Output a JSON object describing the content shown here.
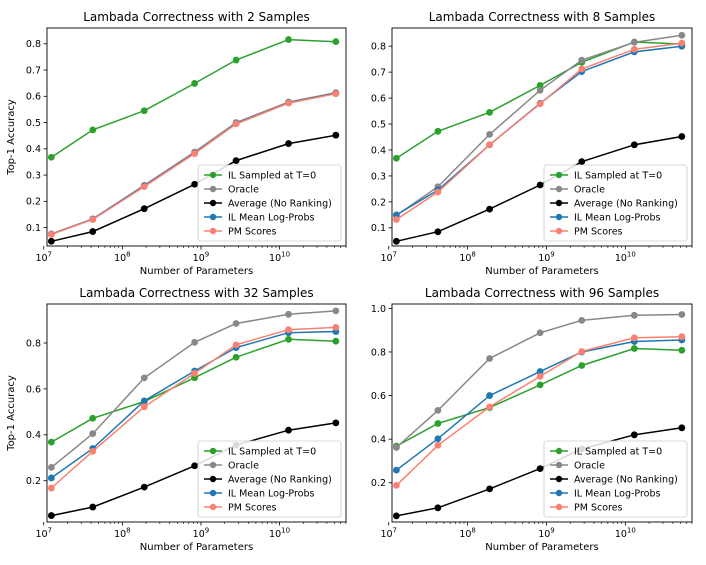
{
  "chart_data": [
    {
      "type": "line",
      "title": "Lambada Correctness with 2 Samples",
      "xlabel": "Number of Parameters",
      "ylabel": "Top-1 Accuracy",
      "xscale": "log",
      "xlim": [
        11000000.0,
        70000000000.0
      ],
      "ylim": [
        0.03,
        0.86
      ],
      "yticks": [
        "0.1",
        "0.2",
        "0.3",
        "0.4",
        "0.5",
        "0.6",
        "0.7",
        "0.8"
      ],
      "xticks": [
        "10^7",
        "10^8",
        "10^9",
        "10^10"
      ],
      "legend_placement": "lower-right",
      "x": [
        12500000.0,
        42000000.0,
        190000000.0,
        830000000.0,
        2800000000.0,
        13000000000.0,
        52000000000.0
      ],
      "series": [
        {
          "name": "IL Sampled at T=0",
          "color": "#2ca02c",
          "values": [
            0.368,
            0.472,
            0.545,
            0.649,
            0.738,
            0.816,
            0.808
          ]
        },
        {
          "name": "Oracle",
          "color": "#888888",
          "values": [
            0.076,
            0.133,
            0.261,
            0.388,
            0.5,
            0.578,
            0.614
          ]
        },
        {
          "name": "Average (No Ranking)",
          "color": "#000000",
          "values": [
            0.048,
            0.085,
            0.172,
            0.265,
            0.355,
            0.42,
            0.452
          ]
        },
        {
          "name": "IL Mean Log-Probs",
          "color": "#1f77b4",
          "values": [
            0.075,
            0.132,
            0.258,
            0.383,
            0.496,
            0.575,
            0.611
          ]
        },
        {
          "name": "PM Scores",
          "color": "#fa8072",
          "values": [
            0.074,
            0.131,
            0.256,
            0.382,
            0.495,
            0.574,
            0.61
          ]
        }
      ]
    },
    {
      "type": "line",
      "title": "Lambada Correctness with 8 Samples",
      "xlabel": "Number of Parameters",
      "ylabel": "",
      "xscale": "log",
      "xlim": [
        11000000.0,
        70000000000.0
      ],
      "ylim": [
        0.03,
        0.87
      ],
      "yticks": [
        "0.1",
        "0.2",
        "0.3",
        "0.4",
        "0.5",
        "0.6",
        "0.7",
        "0.8"
      ],
      "xticks": [
        "10^7",
        "10^8",
        "10^9",
        "10^10"
      ],
      "legend_placement": "lower-right",
      "x": [
        12500000.0,
        42000000.0,
        190000000.0,
        830000000.0,
        2800000000.0,
        13000000000.0,
        52000000000.0
      ],
      "series": [
        {
          "name": "IL Sampled at T=0",
          "color": "#2ca02c",
          "values": [
            0.368,
            0.472,
            0.545,
            0.649,
            0.738,
            0.816,
            0.808
          ]
        },
        {
          "name": "Oracle",
          "color": "#888888",
          "values": [
            0.148,
            0.258,
            0.46,
            0.63,
            0.746,
            0.815,
            0.842
          ]
        },
        {
          "name": "Average (No Ranking)",
          "color": "#000000",
          "values": [
            0.048,
            0.085,
            0.172,
            0.265,
            0.355,
            0.42,
            0.452
          ]
        },
        {
          "name": "IL Mean Log-Probs",
          "color": "#1f77b4",
          "values": [
            0.15,
            0.245,
            0.42,
            0.58,
            0.702,
            0.778,
            0.8
          ]
        },
        {
          "name": "PM Scores",
          "color": "#fa8072",
          "values": [
            0.132,
            0.238,
            0.42,
            0.578,
            0.712,
            0.788,
            0.812
          ]
        }
      ]
    },
    {
      "type": "line",
      "title": "Lambada Correctness with 32 Samples",
      "xlabel": "Number of Parameters",
      "ylabel": "Top-1 Accuracy",
      "xscale": "log",
      "xlim": [
        11000000.0,
        70000000000.0
      ],
      "ylim": [
        0.02,
        0.97
      ],
      "yticks": [
        "0.2",
        "0.4",
        "0.6",
        "0.8"
      ],
      "xticks": [
        "10^7",
        "10^8",
        "10^9",
        "10^10"
      ],
      "legend_placement": "lower-right",
      "x": [
        12500000.0,
        42000000.0,
        190000000.0,
        830000000.0,
        2800000000.0,
        13000000000.0,
        52000000000.0
      ],
      "series": [
        {
          "name": "IL Sampled at T=0",
          "color": "#2ca02c",
          "values": [
            0.368,
            0.472,
            0.545,
            0.649,
            0.738,
            0.816,
            0.808
          ]
        },
        {
          "name": "Oracle",
          "color": "#888888",
          "values": [
            0.258,
            0.405,
            0.648,
            0.803,
            0.885,
            0.925,
            0.94
          ]
        },
        {
          "name": "Average (No Ranking)",
          "color": "#000000",
          "values": [
            0.048,
            0.085,
            0.172,
            0.265,
            0.355,
            0.42,
            0.452
          ]
        },
        {
          "name": "IL Mean Log-Probs",
          "color": "#1f77b4",
          "values": [
            0.212,
            0.34,
            0.548,
            0.678,
            0.78,
            0.845,
            0.85
          ]
        },
        {
          "name": "PM Scores",
          "color": "#fa8072",
          "values": [
            0.168,
            0.328,
            0.522,
            0.668,
            0.792,
            0.858,
            0.868
          ]
        }
      ]
    },
    {
      "type": "line",
      "title": "Lambada Correctness with 96 Samples",
      "xlabel": "Number of Parameters",
      "ylabel": "",
      "xscale": "log",
      "xlim": [
        11000000.0,
        70000000000.0
      ],
      "ylim": [
        0.02,
        1.02
      ],
      "yticks": [
        "0.2",
        "0.4",
        "0.6",
        "0.8",
        "1.0"
      ],
      "xticks": [
        "10^7",
        "10^8",
        "10^9",
        "10^10"
      ],
      "legend_placement": "lower-right",
      "x": [
        12500000.0,
        42000000.0,
        190000000.0,
        830000000.0,
        2800000000.0,
        13000000000.0,
        52000000000.0
      ],
      "series": [
        {
          "name": "IL Sampled at T=0",
          "color": "#2ca02c",
          "values": [
            0.368,
            0.472,
            0.545,
            0.649,
            0.738,
            0.816,
            0.808
          ]
        },
        {
          "name": "Oracle",
          "color": "#888888",
          "values": [
            0.362,
            0.532,
            0.77,
            0.888,
            0.945,
            0.968,
            0.972
          ]
        },
        {
          "name": "Average (No Ranking)",
          "color": "#000000",
          "values": [
            0.048,
            0.085,
            0.172,
            0.265,
            0.355,
            0.42,
            0.452
          ]
        },
        {
          "name": "IL Mean Log-Probs",
          "color": "#1f77b4",
          "values": [
            0.258,
            0.402,
            0.6,
            0.71,
            0.8,
            0.848,
            0.855
          ]
        },
        {
          "name": "PM Scores",
          "color": "#fa8072",
          "values": [
            0.188,
            0.372,
            0.548,
            0.688,
            0.802,
            0.865,
            0.87
          ]
        }
      ]
    }
  ]
}
